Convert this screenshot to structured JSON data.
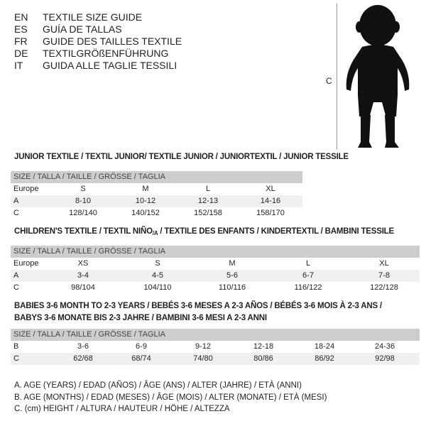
{
  "languages": [
    {
      "code": "EN",
      "title": "TEXTILE SIZE GUIDE"
    },
    {
      "code": "ES",
      "title": "GUÍA DE TALLAS"
    },
    {
      "code": "FR",
      "title": "GUIDE DES TAILLES TEXTILE"
    },
    {
      "code": "DE",
      "title": "TEXTILGRÖßENFÜHRUNG"
    },
    {
      "code": "IT",
      "title": "GUIDA ALLE TAGLIE TESSILI"
    }
  ],
  "figure": {
    "measure_label": "C"
  },
  "junior": {
    "heading": "JUNIOR TEXTILE / TEXTIL JUNIOR/ TEXTILE JUNIOR / JUNIORTEXTIL / JUNIOR TESSILE",
    "header": "SIZE / TALLA / TAILLE / GRÖSSE / TAGLIA",
    "rows": [
      {
        "label": "Europe",
        "values": [
          "S",
          "M",
          "L",
          "XL"
        ]
      },
      {
        "label": "A",
        "values": [
          "8-10",
          "10-12",
          "12-13",
          "14-16"
        ]
      },
      {
        "label": "C",
        "values": [
          "128/140",
          "140/152",
          "152/158",
          "158/170"
        ]
      }
    ]
  },
  "children": {
    "heading": "CHILDREN'S TEXTILE / TEXTIL NIÑO/A / TEXTILE DES ENFANTS / KINDERTEXTIL / BAMBINI TESSILE",
    "header": "SIZE / TALLA / TAILLE / GRÖSSE / TAGLIA",
    "rows": [
      {
        "label": "Europe",
        "values": [
          "XS",
          "S",
          "M",
          "L",
          "XL"
        ]
      },
      {
        "label": "A",
        "values": [
          "3-4",
          "4-5",
          "5-6",
          "6-7",
          "7-8"
        ]
      },
      {
        "label": "C",
        "values": [
          "98/104",
          "104/110",
          "110/116",
          "116/122",
          "122/128"
        ]
      }
    ]
  },
  "babies": {
    "heading_1": "BABIES 3-6 MONTH TO 2-3 YEARS / BEBÉS 3-6 MESES A 2-3 AÑOS / BÉBÉS 3-6 MOIS À 2-3 ANS /",
    "heading_2": "BABYS 3-6 MONATE BIS 2-3 JAHRE / BAMBINI 3-6 MESI A 2-3 ANNI",
    "header": "SIZE / TALLA / TAILLE / GRÖSSE / TAGLIA",
    "rows": [
      {
        "label": "B",
        "values": [
          "3-6",
          "6-9",
          "9-12",
          "12-18",
          "18-24",
          "24-36"
        ]
      },
      {
        "label": "C",
        "values": [
          "62/68",
          "68/74",
          "74/80",
          "80/86",
          "86/92",
          "92/98"
        ]
      }
    ]
  },
  "legend": [
    "A. AGE (YEARS) / EDAD (AÑOS) / ÂGE (ANS) / ALTER (JAHRE) / ETÀ (ANNI)",
    "B. AGE (MONTHS) / EDAD (MESES) / ÂGE (MOIS) / ALTER (MONATE) / ETÀ (MESI)",
    "C. (cm) HEIGHT / ALTURA / HAUTEUR / HÖHE / ALTEZZA"
  ]
}
